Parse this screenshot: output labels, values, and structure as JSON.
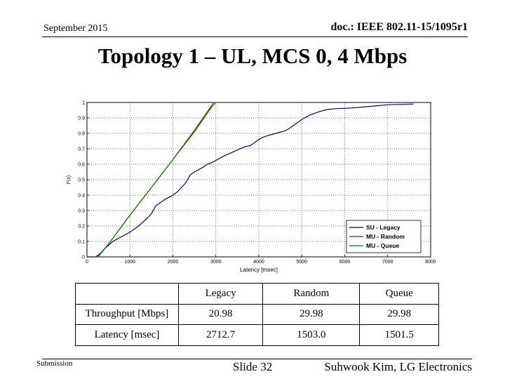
{
  "header": {
    "date": "September 2015",
    "doc": "doc.: IEEE 802.11-15/1095r1"
  },
  "title": "Topology 1 – UL, MCS 0, 4 Mbps",
  "chart_data": {
    "type": "line",
    "xlabel": "Latency [msec]",
    "ylabel": "F(x)",
    "xlim": [
      0,
      8000
    ],
    "ylim": [
      0,
      1
    ],
    "xticks": [
      0,
      1000,
      2000,
      3000,
      4000,
      5000,
      6000,
      7000,
      8000
    ],
    "yticks": [
      0,
      0.1,
      0.2,
      0.3,
      0.4,
      0.5,
      0.6,
      0.7,
      0.8,
      0.9,
      1
    ],
    "grid": true,
    "legend": "bottom-right",
    "series": [
      {
        "name": "SU - Legacy",
        "color": "#00008b",
        "x": [
          0,
          200,
          300,
          400,
          600,
          800,
          1000,
          1200,
          1400,
          1500,
          1600,
          1700,
          1800,
          1900,
          2000,
          2100,
          2200,
          2300,
          2400,
          2500,
          2600,
          2700,
          2800,
          2900,
          3000,
          3100,
          3200,
          3400,
          3600,
          3700,
          3800,
          3900,
          4000,
          4100,
          4200,
          4400,
          4600,
          4700,
          4800,
          5000,
          5200,
          5400,
          5600,
          5800,
          6200,
          6400,
          6600,
          7000,
          7600
        ],
        "y": [
          0,
          0,
          0.02,
          0.05,
          0.1,
          0.13,
          0.16,
          0.2,
          0.25,
          0.28,
          0.33,
          0.35,
          0.37,
          0.385,
          0.4,
          0.42,
          0.45,
          0.48,
          0.53,
          0.55,
          0.565,
          0.58,
          0.6,
          0.61,
          0.625,
          0.64,
          0.655,
          0.68,
          0.705,
          0.715,
          0.72,
          0.74,
          0.76,
          0.775,
          0.785,
          0.8,
          0.815,
          0.83,
          0.85,
          0.89,
          0.92,
          0.94,
          0.955,
          0.96,
          0.965,
          0.97,
          0.975,
          0.985,
          0.99
        ]
      },
      {
        "name": "MU - Random",
        "color": "#cc0000",
        "x": [
          0,
          250,
          350,
          600,
          1000,
          1500,
          2000,
          2500,
          2900,
          3000
        ],
        "y": [
          0,
          0,
          0.03,
          0.12,
          0.27,
          0.45,
          0.63,
          0.81,
          0.97,
          1
        ]
      },
      {
        "name": "MU - Queue",
        "color": "#008000",
        "x": [
          0,
          250,
          350,
          600,
          1000,
          1500,
          2000,
          2500,
          2800,
          2950
        ],
        "y": [
          0,
          0,
          0.03,
          0.12,
          0.27,
          0.45,
          0.63,
          0.82,
          0.94,
          1
        ]
      }
    ]
  },
  "table": {
    "columns": [
      "",
      "Legacy",
      "Random",
      "Queue"
    ],
    "rows": [
      [
        "Throughput [Mbps]",
        "20.98",
        "29.98",
        "29.98"
      ],
      [
        "Latency [msec]",
        "2712.7",
        "1503.0",
        "1501.5"
      ]
    ]
  },
  "footer": {
    "submission": "Submission",
    "slide": "Slide 32",
    "author": "Suhwook Kim, LG Electronics"
  }
}
